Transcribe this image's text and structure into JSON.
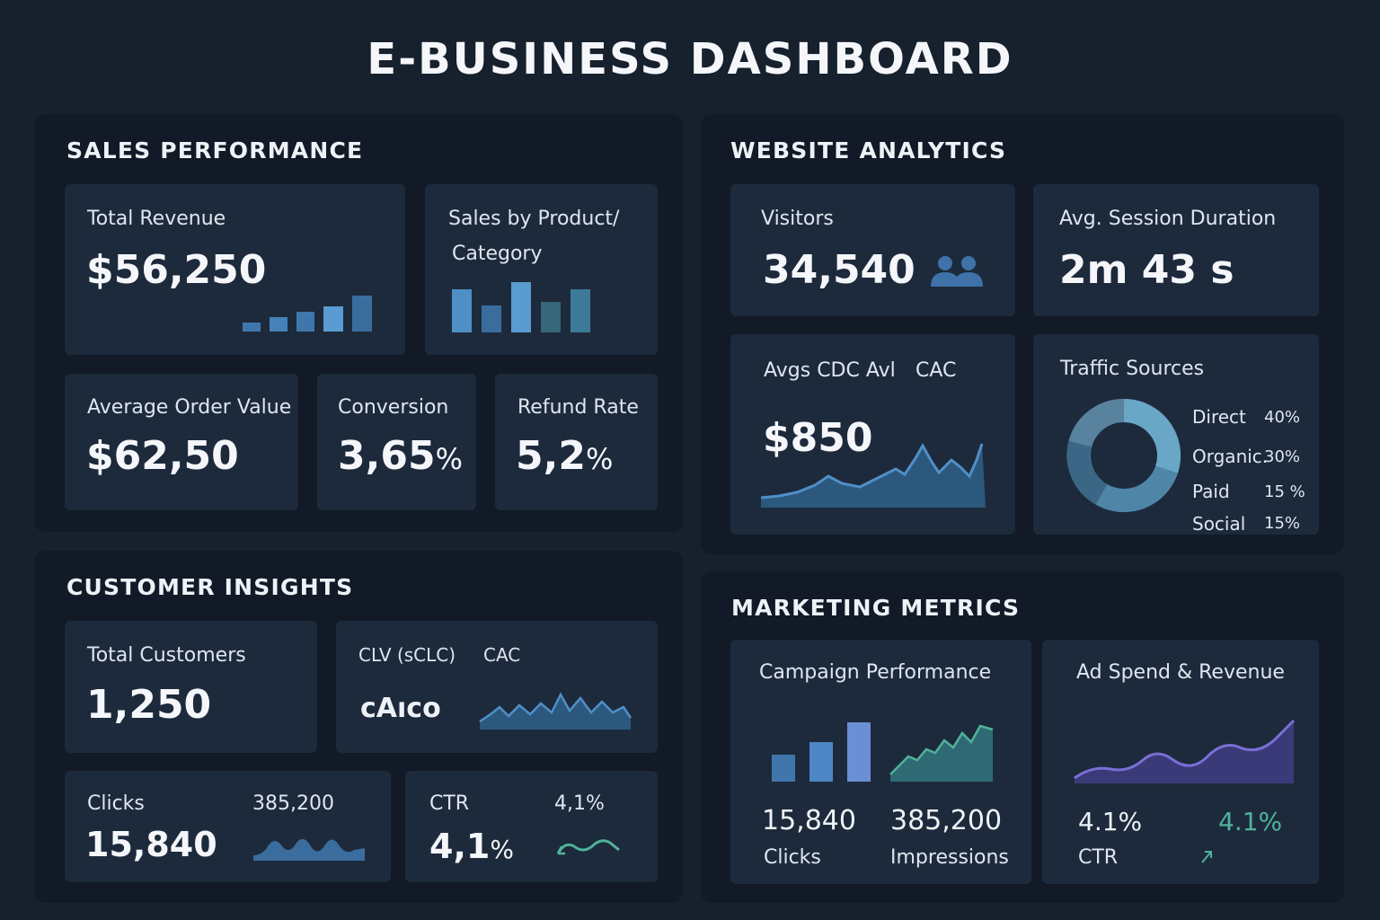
{
  "dashboard_title": "E-BUSINESS DASHBOARD",
  "sales": {
    "title": "SALES PERFORMANCE",
    "total_revenue": {
      "label": "Total Revenue",
      "value": "$56,250"
    },
    "sales_by_product": {
      "label_line1": "Sales by Product/",
      "label_line2": "Category"
    },
    "aov": {
      "label": "Average Order Value",
      "value": "$62,50"
    },
    "conversion": {
      "label": "Conversion",
      "value": "3,65",
      "unit": "%"
    },
    "refund": {
      "label": "Refund Rate",
      "value": "5,2",
      "unit": "%"
    }
  },
  "website": {
    "title": "WEBSITE ANALYTICS",
    "visitors": {
      "label": "Visitors",
      "value": "34,540",
      "icon": "users-icon"
    },
    "session": {
      "label": "Avg. Session Duration",
      "value": "2m 43 s"
    },
    "cac": {
      "label": "Avgs CDC Avl",
      "label2": "CAC",
      "value": "$850"
    },
    "traffic": {
      "label": "Traffic Sources",
      "items": [
        {
          "name": "Direct",
          "pct": "40%",
          "color": "#6aa7c7"
        },
        {
          "name": "Organic.",
          "pct": "30%",
          "color": "#4f86a8"
        },
        {
          "name": "Paid",
          "pct": "15 %",
          "color": "#3c6685"
        },
        {
          "name": "Social",
          "pct": "15%",
          "color": "#58829e"
        }
      ]
    }
  },
  "customer": {
    "title": "CUSTOMER INSIGHTS",
    "total_customers": {
      "label": "Total Customers",
      "value": "1,250"
    },
    "clv": {
      "label": "CLV (sCLC)",
      "label2": "CAC",
      "value": "cAıco"
    },
    "clicks": {
      "label": "Clicks",
      "value": "15,840",
      "secondary": "385,200"
    },
    "ctr": {
      "label": "CTR",
      "value": "4,1",
      "unit": "%",
      "secondary": "4,1%"
    }
  },
  "marketing": {
    "title": "MARKETING METRICS",
    "campaign": {
      "label": "Campaign Performance",
      "clicks_value": "15,840",
      "clicks_label": "Clicks",
      "impressions_value": "385,200",
      "impressions_label": "Impressions"
    },
    "adspend": {
      "label": "Ad Spend & Revenue",
      "ctr_value": "4.1%",
      "ctr_label": "CTR",
      "ctr_change": "4.1%"
    }
  },
  "colors": {
    "background": "#17202d",
    "panel": "#111a26",
    "card": "#1d2a3c",
    "accent_blue": "#4f8fc7",
    "accent_teal": "#4fb39a",
    "accent_purple": "#7b6fd6"
  }
}
